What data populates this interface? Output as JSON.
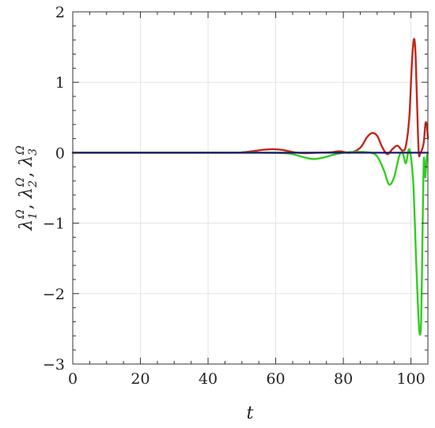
{
  "chart_data": {
    "type": "line",
    "title": "",
    "xlabel": "t",
    "ylabel": {
      "parts": [
        {
          "base": "λ",
          "sub": "1",
          "sup": "Ω"
        },
        {
          "base": "λ",
          "sub": "2",
          "sup": "Ω"
        },
        {
          "base": "λ",
          "sub": "3",
          "sup": "Ω"
        }
      ]
    },
    "xlim": [
      0,
      105
    ],
    "ylim": [
      -3,
      2
    ],
    "x_ticks": [
      0,
      20,
      40,
      60,
      80,
      100
    ],
    "x_tick_labels": [
      "0",
      "20",
      "40",
      "60",
      "80",
      "100"
    ],
    "y_ticks": [
      2,
      1,
      0,
      -1,
      -2,
      -3
    ],
    "y_tick_labels": [
      "2",
      "1",
      "0",
      "−1",
      "−2",
      "−3"
    ],
    "grid": true,
    "series": [
      {
        "color": "#c0281c",
        "x": [
          0,
          45,
          50,
          53,
          56,
          59,
          62,
          65,
          68,
          72,
          76,
          79,
          82,
          85,
          87,
          88.5,
          90,
          91.5,
          93,
          94.5,
          96,
          97.5,
          98.5,
          99.5,
          100.2,
          100.8,
          101.3,
          101.8,
          102.3,
          102.8,
          103.3,
          103.8,
          104.3,
          104.7,
          105
        ],
        "y": [
          0,
          0,
          0.005,
          0.02,
          0.04,
          0.05,
          0.04,
          0.01,
          -0.005,
          0,
          0.005,
          0.02,
          0,
          0.07,
          0.22,
          0.28,
          0.24,
          0.08,
          -0.02,
          0.05,
          0.1,
          0.03,
          0.1,
          0.5,
          1.2,
          1.6,
          1.45,
          0.7,
          0,
          0,
          0.05,
          0.15,
          0.42,
          0.38,
          0.2
        ]
      },
      {
        "color": "#33cc22",
        "x": [
          0,
          45,
          55,
          62,
          65,
          68,
          71,
          74,
          77,
          80,
          83,
          86,
          88,
          90,
          92,
          93.5,
          95,
          96.5,
          97.5,
          98.5,
          99.5,
          100.5,
          101,
          101.5,
          102,
          102.5,
          103,
          103.4,
          103.8,
          104.2,
          104.6,
          105
        ],
        "y": [
          0,
          0,
          0,
          -0.005,
          -0.02,
          -0.06,
          -0.09,
          -0.07,
          -0.03,
          0,
          0.01,
          0.01,
          0,
          -0.05,
          -0.25,
          -0.45,
          -0.35,
          -0.05,
          0,
          -0.15,
          0.05,
          -0.3,
          -0.8,
          -1.5,
          -2.1,
          -2.55,
          -2.4,
          -1.2,
          -0.1,
          -0.35,
          -0.1,
          0
        ]
      },
      {
        "color": "#1a1a6e",
        "x": [
          0,
          105
        ],
        "y": [
          0,
          0
        ]
      }
    ]
  }
}
